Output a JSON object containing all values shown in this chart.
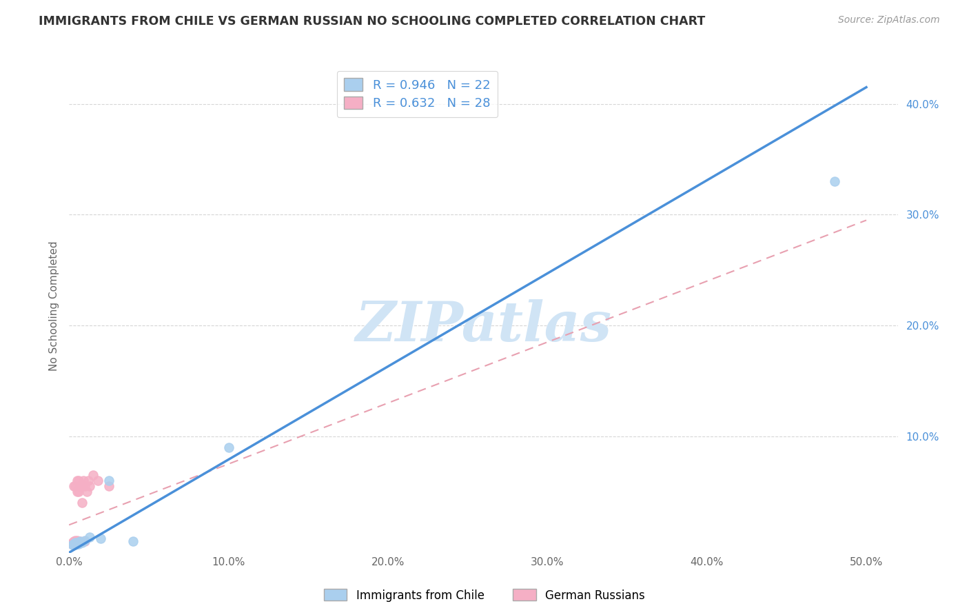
{
  "title": "IMMIGRANTS FROM CHILE VS GERMAN RUSSIAN NO SCHOOLING COMPLETED CORRELATION CHART",
  "source": "Source: ZipAtlas.com",
  "ylabel_left": "No Schooling Completed",
  "xlim": [
    0.0,
    0.52
  ],
  "ylim": [
    -0.005,
    0.44
  ],
  "xtick_vals": [
    0.0,
    0.1,
    0.2,
    0.3,
    0.4,
    0.5
  ],
  "xtick_labels": [
    "0.0%",
    "10.0%",
    "20.0%",
    "30.0%",
    "40.0%",
    "50.0%"
  ],
  "ytick_vals": [
    0.1,
    0.2,
    0.3,
    0.4
  ],
  "ytick_labels": [
    "10.0%",
    "20.0%",
    "30.0%",
    "40.0%"
  ],
  "series1_label": "Immigrants from Chile",
  "series2_label": "German Russians",
  "series1_R": "0.946",
  "series1_N": "22",
  "series2_R": "0.632",
  "series2_N": "28",
  "series1_color": "#aacfee",
  "series2_color": "#f5afc5",
  "trendline1_color": "#4a90d9",
  "trendline2_color": "#e8a0b0",
  "tick_label_color": "#4a90d9",
  "watermark_color": "#d0e4f5",
  "background_color": "#ffffff",
  "grid_color": "#cccccc",
  "series1_x": [
    0.002,
    0.003,
    0.003,
    0.003,
    0.004,
    0.004,
    0.004,
    0.005,
    0.005,
    0.005,
    0.006,
    0.006,
    0.007,
    0.007,
    0.008,
    0.01,
    0.013,
    0.02,
    0.025,
    0.04,
    0.1,
    0.48
  ],
  "series1_y": [
    0.002,
    0.002,
    0.003,
    0.003,
    0.002,
    0.003,
    0.004,
    0.003,
    0.004,
    0.003,
    0.003,
    0.004,
    0.004,
    0.005,
    0.004,
    0.006,
    0.009,
    0.008,
    0.06,
    0.005,
    0.09,
    0.33
  ],
  "series2_x": [
    0.002,
    0.002,
    0.003,
    0.003,
    0.003,
    0.004,
    0.004,
    0.004,
    0.005,
    0.005,
    0.005,
    0.005,
    0.006,
    0.006,
    0.006,
    0.007,
    0.007,
    0.008,
    0.008,
    0.009,
    0.01,
    0.01,
    0.011,
    0.012,
    0.013,
    0.015,
    0.018,
    0.025
  ],
  "series2_y": [
    0.003,
    0.004,
    0.055,
    0.004,
    0.005,
    0.006,
    0.055,
    0.005,
    0.006,
    0.05,
    0.06,
    0.005,
    0.06,
    0.005,
    0.05,
    0.055,
    0.005,
    0.04,
    0.055,
    0.06,
    0.005,
    0.055,
    0.05,
    0.06,
    0.055,
    0.065,
    0.06,
    0.055
  ],
  "trendline1_x0": 0.0,
  "trendline1_y0": -0.005,
  "trendline1_x1": 0.5,
  "trendline1_y1": 0.415,
  "trendline2_x0": 0.0,
  "trendline2_y0": 0.02,
  "trendline2_x1": 0.5,
  "trendline2_y1": 0.295
}
